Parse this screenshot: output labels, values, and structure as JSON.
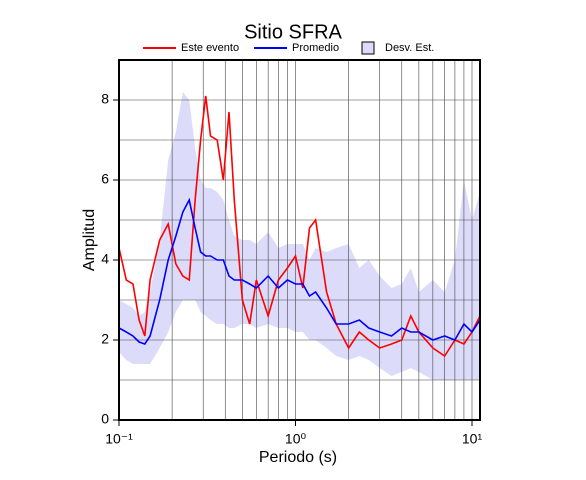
{
  "chart_data": {
    "type": "line",
    "title": "Sitio SFRA",
    "x_label": "Periodo (s)",
    "y_label": "Amplitud",
    "x": [
      0.1,
      0.11,
      0.12,
      0.13,
      0.14,
      0.15,
      0.17,
      0.19,
      0.21,
      0.23,
      0.25,
      0.27,
      0.29,
      0.31,
      0.33,
      0.36,
      0.39,
      0.42,
      0.45,
      0.5,
      0.55,
      0.6,
      0.7,
      0.8,
      0.9,
      1.0,
      1.1,
      1.2,
      1.3,
      1.5,
      1.7,
      2.0,
      2.3,
      2.6,
      3.0,
      3.5,
      4,
      4.5,
      5,
      6,
      7,
      8,
      9,
      10,
      11.1
    ],
    "series": [
      {
        "name": "Este evento",
        "color": "#ff0000",
        "values": [
          4.3,
          3.5,
          3.4,
          2.5,
          2.1,
          3.5,
          4.5,
          4.9,
          3.9,
          3.6,
          3.5,
          5.5,
          7.0,
          8.1,
          7.1,
          7.0,
          6.0,
          7.7,
          5.5,
          3.0,
          2.4,
          3.5,
          2.6,
          3.5,
          3.8,
          4.1,
          3.3,
          4.8,
          5.0,
          3.2,
          2.4,
          1.8,
          2.2,
          2.0,
          1.8,
          1.9,
          2.0,
          2.6,
          2.2,
          1.8,
          1.6,
          2.0,
          1.9,
          2.2,
          2.6
        ]
      },
      {
        "name": "Promedio",
        "color": "#0000ff",
        "values": [
          2.3,
          2.2,
          2.1,
          1.95,
          1.9,
          2.1,
          3.0,
          4.0,
          4.6,
          5.2,
          5.5,
          4.8,
          4.2,
          4.1,
          4.1,
          4.0,
          4.0,
          3.6,
          3.5,
          3.5,
          3.4,
          3.3,
          3.6,
          3.3,
          3.5,
          3.4,
          3.4,
          3.1,
          3.2,
          2.8,
          2.4,
          2.4,
          2.5,
          2.3,
          2.2,
          2.1,
          2.3,
          2.2,
          2.2,
          2.0,
          2.1,
          2.0,
          2.4,
          2.2,
          2.5
        ]
      }
    ],
    "band": {
      "name": "Desv. Est.",
      "color": "#dcdcfa",
      "upper": [
        3.0,
        2.9,
        2.8,
        2.6,
        2.7,
        3.2,
        4.5,
        6.5,
        7.2,
        8.2,
        8.0,
        6.8,
        6.0,
        5.8,
        5.8,
        5.7,
        5.5,
        5.0,
        4.6,
        4.5,
        4.5,
        4.4,
        4.7,
        4.3,
        4.4,
        4.4,
        4.4,
        4.0,
        4.3,
        4.2,
        4.3,
        4.4,
        3.8,
        4.0,
        3.6,
        3.3,
        3.4,
        3.8,
        3.2,
        3.5,
        3.2,
        4.0,
        6.0,
        5.0,
        5.7
      ],
      "lower": [
        1.7,
        1.5,
        1.4,
        1.4,
        1.4,
        1.4,
        1.8,
        2.2,
        2.7,
        3.0,
        3.0,
        3.0,
        2.7,
        2.6,
        2.5,
        2.4,
        2.4,
        2.3,
        2.3,
        2.4,
        2.4,
        2.3,
        2.4,
        2.3,
        2.3,
        2.2,
        2.2,
        2.0,
        2.0,
        1.8,
        1.6,
        1.5,
        1.6,
        1.5,
        1.3,
        1.1,
        1.2,
        1.3,
        1.2,
        1.0,
        1.0,
        1.0,
        1.0,
        1.0,
        1.0
      ]
    },
    "xlim": [
      0.1,
      11.1
    ],
    "ylim": [
      0,
      9
    ],
    "log_x": true,
    "grid": true,
    "xticks": [
      {
        "value": 0.1,
        "label": "10⁻¹"
      },
      {
        "value": 1,
        "label": "10⁰"
      },
      {
        "value": 10,
        "label": "10¹"
      }
    ],
    "yticks": [
      0,
      2,
      4,
      6,
      8
    ],
    "xgrid": [
      0.2,
      0.3,
      0.4,
      0.5,
      0.6,
      0.7,
      0.8,
      0.9,
      2,
      3,
      4,
      5,
      6,
      7,
      8,
      9
    ],
    "ygrid": [
      1,
      3,
      5,
      7
    ]
  }
}
